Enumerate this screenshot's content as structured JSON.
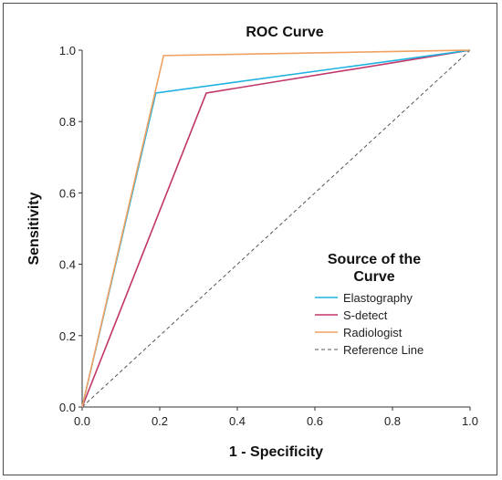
{
  "chart_data": {
    "type": "line",
    "title": "ROC Curve",
    "xlabel": "1 - Specificity",
    "ylabel": "Sensitivity",
    "xlim": [
      0.0,
      1.0
    ],
    "ylim": [
      0.0,
      1.0
    ],
    "x_ticks": [
      "0.0",
      "0.2",
      "0.4",
      "0.6",
      "0.8",
      "1.0"
    ],
    "y_ticks": [
      "0.0",
      "0.2",
      "0.4",
      "0.6",
      "0.8",
      "1.0"
    ],
    "grid": false,
    "legend": {
      "title_lines": [
        "Source of the",
        "Curve"
      ],
      "placement": "lower-right"
    },
    "series": [
      {
        "name": "Elastography",
        "color": "#1fb2e0",
        "x": [
          0.0,
          0.19,
          1.0
        ],
        "y": [
          0.0,
          0.88,
          1.0
        ]
      },
      {
        "name": "S-detect",
        "color": "#c2356a",
        "x": [
          0.0,
          0.32,
          1.0
        ],
        "y": [
          0.0,
          0.88,
          1.0
        ]
      },
      {
        "name": "Radiologist",
        "color": "#f0a160",
        "x": [
          0.0,
          0.21,
          1.0
        ],
        "y": [
          0.0,
          0.985,
          1.0
        ]
      },
      {
        "name": "Reference Line",
        "color": "#555555",
        "dashed": true,
        "x": [
          0.0,
          1.0
        ],
        "y": [
          0.0,
          1.0
        ]
      }
    ]
  }
}
